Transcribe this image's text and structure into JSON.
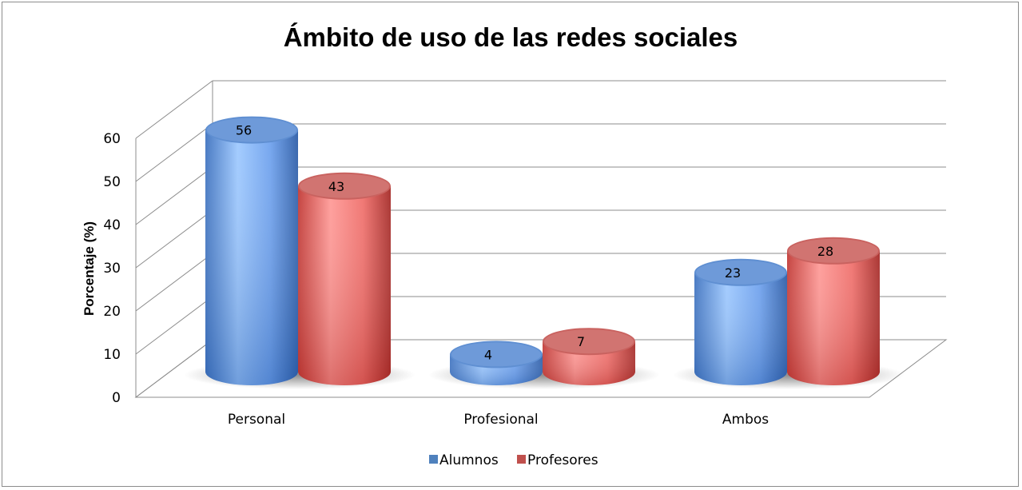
{
  "chart_data": {
    "type": "bar",
    "title": "Ámbito de uso de las redes sociales",
    "xlabel": "",
    "ylabel": "Porcentaje (%)",
    "categories": [
      "Personal",
      "Profesional",
      "Ambos"
    ],
    "yticks": [
      "0",
      "10",
      "20",
      "30",
      "40",
      "50",
      "60"
    ],
    "ylim": [
      0,
      60
    ],
    "series": [
      {
        "name": "Alumnos",
        "values": [
          56,
          4,
          23
        ],
        "color": "#4f81bd"
      },
      {
        "name": "Profesores",
        "values": [
          43,
          7,
          28
        ],
        "color": "#c0504d"
      }
    ],
    "grid": true,
    "legend": "bottom",
    "style": "3d-cylinder"
  }
}
